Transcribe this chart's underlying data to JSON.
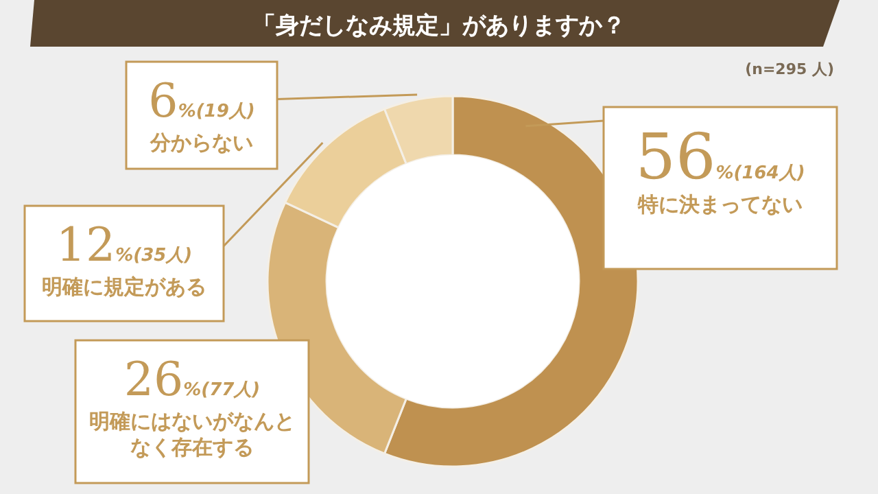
{
  "chart_data": {
    "type": "donut",
    "title": "「身だしなみ規定」がありますか？",
    "subtitle": "(n=295 人)",
    "categories": [
      "特に決まってない",
      "明確にはないがなんとなく存在する",
      "明確に規定がある",
      "分からない"
    ],
    "values": [
      56,
      26,
      12,
      6
    ],
    "colors": [
      "#bf9150",
      "#d9b478",
      "#ebcf9a",
      "#efd8ad"
    ],
    "value_labels": [
      "56%(164人)",
      "26%(77人)",
      "12%(35人)",
      "6%(19人)"
    ],
    "legend": false
  }
}
